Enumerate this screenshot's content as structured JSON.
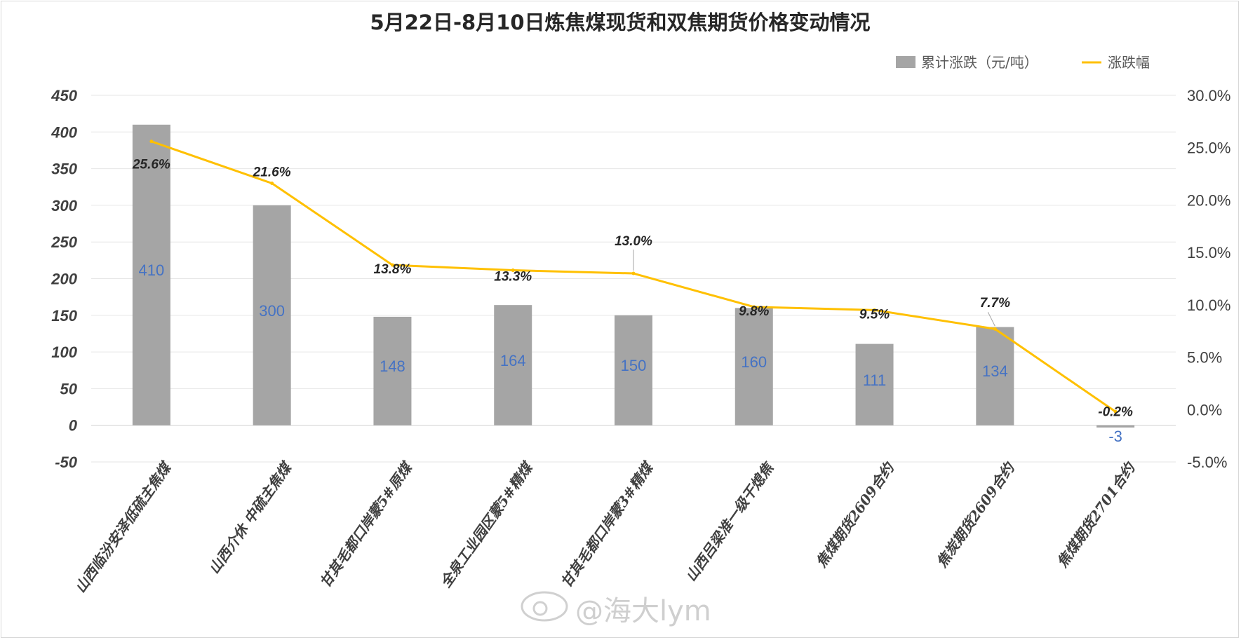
{
  "chart_data": {
    "type": "bar",
    "title": "5月22日-8月10日炼焦煤现货和双焦期货价格变动情况",
    "categories": [
      "山西临汾安泽低硫主焦煤",
      "山西介休 中硫主焦煤",
      "甘其毛都口岸蒙5#原煤",
      "全泉工业园区蒙5#精煤",
      "甘其毛都口岸蒙3#精煤",
      "山西吕梁准一级干熄焦",
      "焦煤期货2609合约",
      "焦炭期货2609合约",
      "焦煤期货2701合约"
    ],
    "series": [
      {
        "name": "累计涨跌（元/吨）",
        "type": "bar",
        "axis": "left",
        "color": "#a5a5a5",
        "values": [
          410,
          300,
          148,
          164,
          150,
          160,
          111,
          134,
          -3
        ],
        "labels": [
          "410",
          "300",
          "148",
          "164",
          "150",
          "160",
          "111",
          "134",
          "-3"
        ]
      },
      {
        "name": "涨跌幅",
        "type": "line",
        "axis": "right",
        "color": "#ffc000",
        "values": [
          25.6,
          21.6,
          13.8,
          13.3,
          13.0,
          9.8,
          9.5,
          7.7,
          -0.2
        ],
        "labels": [
          "25.6%",
          "21.6%",
          "13.8%",
          "13.3%",
          "13.0%",
          "9.8%",
          "9.5%",
          "7.7%",
          "-0.2%"
        ]
      }
    ],
    "ylim": [
      -50,
      450
    ],
    "yticks": [
      "-50",
      "0",
      "50",
      "100",
      "150",
      "200",
      "250",
      "300",
      "350",
      "400",
      "450"
    ],
    "y2lim": [
      -5,
      30
    ],
    "y2ticks": [
      "-5.0%",
      "0.0%",
      "5.0%",
      "10.0%",
      "15.0%",
      "20.0%",
      "25.0%",
      "30.0%"
    ],
    "legend": "top-right",
    "grid": true
  },
  "watermark": "@海大lym"
}
